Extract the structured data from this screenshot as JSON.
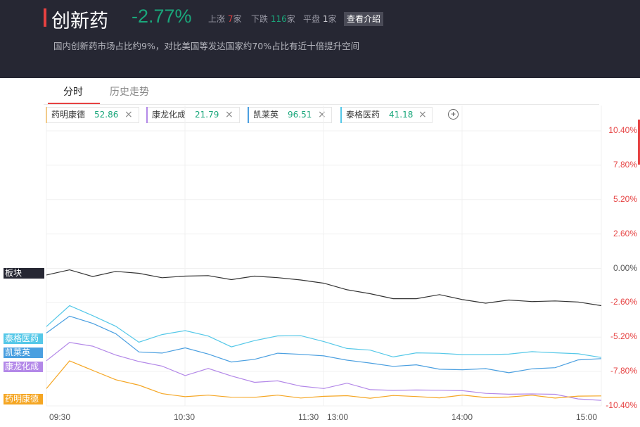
{
  "header": {
    "title": "创新药",
    "change_pct": "-2.77%",
    "up_label": "上涨",
    "up_count": "7",
    "up_unit": "家",
    "down_label": "下跌",
    "down_count": "116",
    "down_unit": "家",
    "flat_label": "平盘",
    "flat_count": "1",
    "flat_unit": "家",
    "intro_button": "查看介绍",
    "description": "国内创新药市场占比约9%，对比美国等发达国家约70%占比有近十倍提升空间"
  },
  "tabs": [
    "分时",
    "历史走势"
  ],
  "stock_chips": [
    {
      "name": "药明康德",
      "price": "52.86",
      "color": "#f5a623"
    },
    {
      "name": "康龙化成",
      "price": "21.79",
      "color": "#b388e8"
    },
    {
      "name": "凯莱英",
      "price": "96.51",
      "color": "#4a9fe0"
    },
    {
      "name": "泰格医药",
      "price": "41.18",
      "color": "#55c8e8"
    }
  ],
  "add_icon": "plus-circle-icon",
  "close_icon": "×",
  "series_tags": {
    "board": "板块",
    "taige": "泰格医药",
    "kailaiying": "凯莱英",
    "kanglong": "康龙化成",
    "yaoming": "药明康德"
  },
  "chart_data": {
    "type": "line",
    "x_ticks": [
      "09:30",
      "10:30",
      "11:30",
      "13:00",
      "14:00",
      "15:00"
    ],
    "y_ticks": [
      "10.40%",
      "7.80%",
      "5.20%",
      "2.60%",
      "0.00%",
      "-2.60%",
      "-5.20%",
      "-7.80%",
      "-10.40%"
    ],
    "ylim": [
      -10.4,
      10.4
    ],
    "series": [
      {
        "name": "板块",
        "color": "#333333",
        "values": [
          -0.5,
          -0.2,
          -0.5,
          -0.3,
          -0.4,
          -0.6,
          -0.7,
          -0.5,
          -0.8,
          -0.7,
          -0.6,
          -0.9,
          -1.2,
          -1.5,
          -2.0,
          -2.3,
          -2.2,
          -2.1,
          -2.3,
          -2.6,
          -2.5,
          -2.4,
          -2.5,
          -2.6,
          -2.7
        ]
      },
      {
        "name": "泰格医药",
        "color": "#55c8e8",
        "values": [
          -4.5,
          -2.8,
          -3.5,
          -4.5,
          -5.5,
          -5.0,
          -4.8,
          -5.0,
          -6.0,
          -5.5,
          -5.0,
          -5.2,
          -5.5,
          -6.0,
          -6.3,
          -6.6,
          -6.4,
          -6.5,
          -6.4,
          -6.6,
          -6.5,
          -6.2,
          -6.5,
          -6.4,
          -6.7
        ]
      },
      {
        "name": "凯莱英",
        "color": "#4a9fe0",
        "values": [
          -5.0,
          -3.5,
          -4.2,
          -5.0,
          -6.2,
          -6.5,
          -6.0,
          -6.4,
          -7.2,
          -6.8,
          -6.4,
          -6.6,
          -6.5,
          -7.0,
          -7.2,
          -7.3,
          -7.4,
          -7.6,
          -7.6,
          -7.7,
          -7.8,
          -7.6,
          -7.6,
          -6.8,
          -6.9
        ]
      },
      {
        "name": "康龙化成",
        "color": "#b388e8",
        "values": [
          -7.0,
          -5.5,
          -6.0,
          -6.5,
          -7.0,
          -7.5,
          -8.0,
          -7.6,
          -8.2,
          -8.5,
          -8.6,
          -8.9,
          -9.0,
          -8.8,
          -9.1,
          -9.2,
          -9.3,
          -9.1,
          -9.3,
          -9.5,
          -9.4,
          -9.6,
          -9.5,
          -9.8,
          -10.1
        ]
      },
      {
        "name": "药明康德",
        "color": "#f5a623",
        "values": [
          -9.0,
          -7.0,
          -7.8,
          -8.3,
          -8.9,
          -9.5,
          -9.6,
          -9.7,
          -9.7,
          -9.7,
          -9.7,
          -9.7,
          -9.7,
          -9.7,
          -9.7,
          -9.7,
          -9.7,
          -9.7,
          -9.7,
          -9.7,
          -9.7,
          -9.7,
          -9.7,
          -9.7,
          -9.7
        ]
      }
    ]
  },
  "colors": {
    "up": "#e64141",
    "down": "#1aa77b",
    "header_bg": "#262733"
  }
}
